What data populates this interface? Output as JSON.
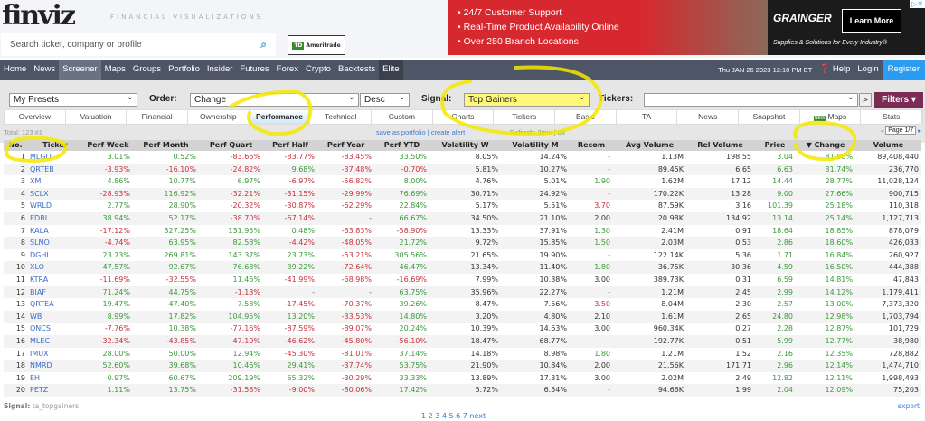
{
  "header": {
    "logo": "finviz",
    "tagline": "FINANCIAL VISUALIZATIONS",
    "search_placeholder": "Search ticker, company or profile",
    "broker_logo": "Ameritrade"
  },
  "ad": {
    "lines": [
      "• 24/7 Customer Support",
      "• Real-Time Product Availability Online",
      "• Over 250 Branch Locations"
    ],
    "brand": "GRAINGER",
    "button": "Learn More",
    "slogan": "Supplies & Solutions for Every Industry®"
  },
  "nav": {
    "items": [
      "Home",
      "News",
      "Screener",
      "Maps",
      "Groups",
      "Portfolio",
      "Insider",
      "Futures",
      "Forex",
      "Crypto",
      "Backtests",
      "Elite"
    ],
    "active": "Screener",
    "datetime": "Thu JAN 26 2023 12:10 PM ET",
    "help": "Help",
    "login": "Login",
    "register": "Register"
  },
  "controls": {
    "presets": "My Presets",
    "order_label": "Order:",
    "order": "Change",
    "direction": "Desc",
    "signal_label": "Signal:",
    "signal": "Top Gainers",
    "tickers_label": "Tickers:",
    "tickers_value": "",
    "go": ">",
    "filters": "Filters ▾"
  },
  "tabs": [
    "Overview",
    "Valuation",
    "Financial",
    "Ownership",
    "Performance",
    "Technical",
    "Custom",
    "Charts",
    "Tickers",
    "Basic",
    "TA",
    "News",
    "Snapshot",
    "Maps",
    "Stats"
  ],
  "active_tab": "Performance",
  "info": {
    "total": "Total: 123 #1",
    "save": "save as portfolio | create alert",
    "refresh": "Refresh: 3min | off",
    "page": "Page 1/7"
  },
  "columns": [
    "No.",
    "Ticker",
    "Perf Week",
    "Perf Month",
    "Perf Quart",
    "Perf Half",
    "Perf Year",
    "Perf YTD",
    "Volatility W",
    "Volatility M",
    "Recom",
    "Avg Volume",
    "Rel Volume",
    "Price",
    "▼ Change",
    "Volume"
  ],
  "rows": [
    [
      "1",
      "MLGO",
      "3.01%",
      "0.52%",
      "-83.66%",
      "-83.77%",
      "-83.45%",
      "33.50%",
      "8.05%",
      "14.24%",
      "-",
      "1.13M",
      "198.55",
      "3.04",
      "81.88%",
      "89,408,440"
    ],
    [
      "2",
      "QRTEB",
      "-3.93%",
      "-16.10%",
      "-24.82%",
      "9.68%",
      "-37.48%",
      "-0.70%",
      "5.81%",
      "10.27%",
      "-",
      "89.45K",
      "6.65",
      "6.63",
      "31.74%",
      "236,770"
    ],
    [
      "3",
      "XM",
      "4.86%",
      "10.77%",
      "6.97%",
      "-6.97%",
      "-56.82%",
      "8.00%",
      "4.76%",
      "5.01%",
      "1.90",
      "1.62M",
      "17.12",
      "14.44",
      "28.77%",
      "11,028,124"
    ],
    [
      "4",
      "SCLX",
      "-28.93%",
      "116.92%",
      "-32.21%",
      "-31.15%",
      "-29.99%",
      "76.69%",
      "30.71%",
      "24.92%",
      "-",
      "170.22K",
      "13.28",
      "9.00",
      "27.66%",
      "900,715"
    ],
    [
      "5",
      "WRLD",
      "2.77%",
      "28.90%",
      "-20.32%",
      "-30.87%",
      "-62.29%",
      "22.84%",
      "5.17%",
      "5.51%",
      "3.70",
      "87.59K",
      "3.16",
      "101.39",
      "25.18%",
      "110,318"
    ],
    [
      "6",
      "EDBL",
      "38.94%",
      "52.17%",
      "-38.70%",
      "-67.14%",
      "-",
      "66.67%",
      "34.50%",
      "21.10%",
      "2.00",
      "20.98K",
      "134.92",
      "13.14",
      "25.14%",
      "1,127,713"
    ],
    [
      "7",
      "KALA",
      "-17.12%",
      "327.25%",
      "131.95%",
      "0.48%",
      "-63.83%",
      "-58.90%",
      "13.33%",
      "37.91%",
      "1.30",
      "2.41M",
      "0.91",
      "18.64",
      "18.85%",
      "878,079"
    ],
    [
      "8",
      "SLNO",
      "-4.74%",
      "63.95%",
      "82.58%",
      "-4.42%",
      "-48.05%",
      "21.72%",
      "9.72%",
      "15.85%",
      "1.50",
      "2.03M",
      "0.53",
      "2.86",
      "18.60%",
      "426,033"
    ],
    [
      "9",
      "DGHI",
      "23.73%",
      "269.81%",
      "143.37%",
      "23.73%",
      "-53.21%",
      "305.56%",
      "21.65%",
      "19.90%",
      "-",
      "122.14K",
      "5.36",
      "1.71",
      "16.84%",
      "260,927"
    ],
    [
      "10",
      "XLO",
      "47.57%",
      "92.67%",
      "76.68%",
      "39.22%",
      "-72.64%",
      "46.47%",
      "13.34%",
      "11.40%",
      "1.80",
      "36.75K",
      "30.36",
      "4.59",
      "16.50%",
      "444,388"
    ],
    [
      "11",
      "KTRA",
      "-11.69%",
      "-32.55%",
      "11.46%",
      "-41.99%",
      "-68.98%",
      "-16.69%",
      "7.99%",
      "10.38%",
      "3.00",
      "389.73K",
      "0.31",
      "6.59",
      "14.81%",
      "47,843"
    ],
    [
      "12",
      "BIAF",
      "71.24%",
      "44.75%",
      "-1.13%",
      "-",
      "-",
      "63.75%",
      "35.96%",
      "22.27%",
      "-",
      "1.21M",
      "2.45",
      "2.99",
      "14.12%",
      "1,179,411"
    ],
    [
      "13",
      "QRTEA",
      "19.47%",
      "47.40%",
      "7.58%",
      "-17.45%",
      "-70.37%",
      "39.26%",
      "8.47%",
      "7.56%",
      "3.50",
      "8.04M",
      "2.30",
      "2.57",
      "13.00%",
      "7,373,320"
    ],
    [
      "14",
      "WB",
      "8.99%",
      "17.82%",
      "104.95%",
      "13.20%",
      "-33.53%",
      "14.80%",
      "3.20%",
      "4.80%",
      "2.10",
      "1.61M",
      "2.65",
      "24.80",
      "12.98%",
      "1,703,794"
    ],
    [
      "15",
      "ONCS",
      "-7.76%",
      "10.38%",
      "-77.16%",
      "-87.59%",
      "-89.07%",
      "20.24%",
      "10.39%",
      "14.63%",
      "3.00",
      "960.34K",
      "0.27",
      "2.28",
      "12.87%",
      "101,729"
    ],
    [
      "16",
      "MLEC",
      "-32.34%",
      "-43.85%",
      "-47.10%",
      "-46.62%",
      "-45.80%",
      "-56.10%",
      "18.47%",
      "68.77%",
      "-",
      "192.77K",
      "0.51",
      "5.99",
      "12.77%",
      "38,980"
    ],
    [
      "17",
      "IMUX",
      "28.00%",
      "50.00%",
      "12.94%",
      "-45.30%",
      "-81.01%",
      "37.14%",
      "14.18%",
      "8.98%",
      "1.80",
      "1.21M",
      "1.52",
      "2.16",
      "12.35%",
      "728,882"
    ],
    [
      "18",
      "NMRD",
      "52.60%",
      "39.68%",
      "10.46%",
      "29.41%",
      "-37.74%",
      "53.75%",
      "21.90%",
      "10.84%",
      "2.00",
      "21.56K",
      "171.71",
      "2.96",
      "12.14%",
      "1,474,710"
    ],
    [
      "19",
      "EH",
      "0.97%",
      "60.67%",
      "209.19%",
      "65.32%",
      "-30.29%",
      "33.33%",
      "13.89%",
      "17.31%",
      "3.00",
      "2.02M",
      "2.49",
      "12.82",
      "12.11%",
      "1,998,493"
    ],
    [
      "20",
      "PETZ",
      "1.11%",
      "13.75%",
      "-31.58%",
      "-9.00%",
      "-80.06%",
      "17.42%",
      "5.72%",
      "6.54%",
      "-",
      "94.66K",
      "1.99",
      "2.04",
      "12.09%",
      "75,203"
    ]
  ],
  "footer": {
    "signal_label": "Signal:",
    "signal_value": "ta_topgainers",
    "export": "export",
    "pages": "1 2 3 4 5 6 7 next"
  },
  "colors": {
    "nav": "#4e5566",
    "register": "#2c9cf0",
    "filters": "#7b2c54",
    "positive": "#3a9a3a",
    "negative": "#c8303a",
    "annotation": "#f5e800"
  }
}
